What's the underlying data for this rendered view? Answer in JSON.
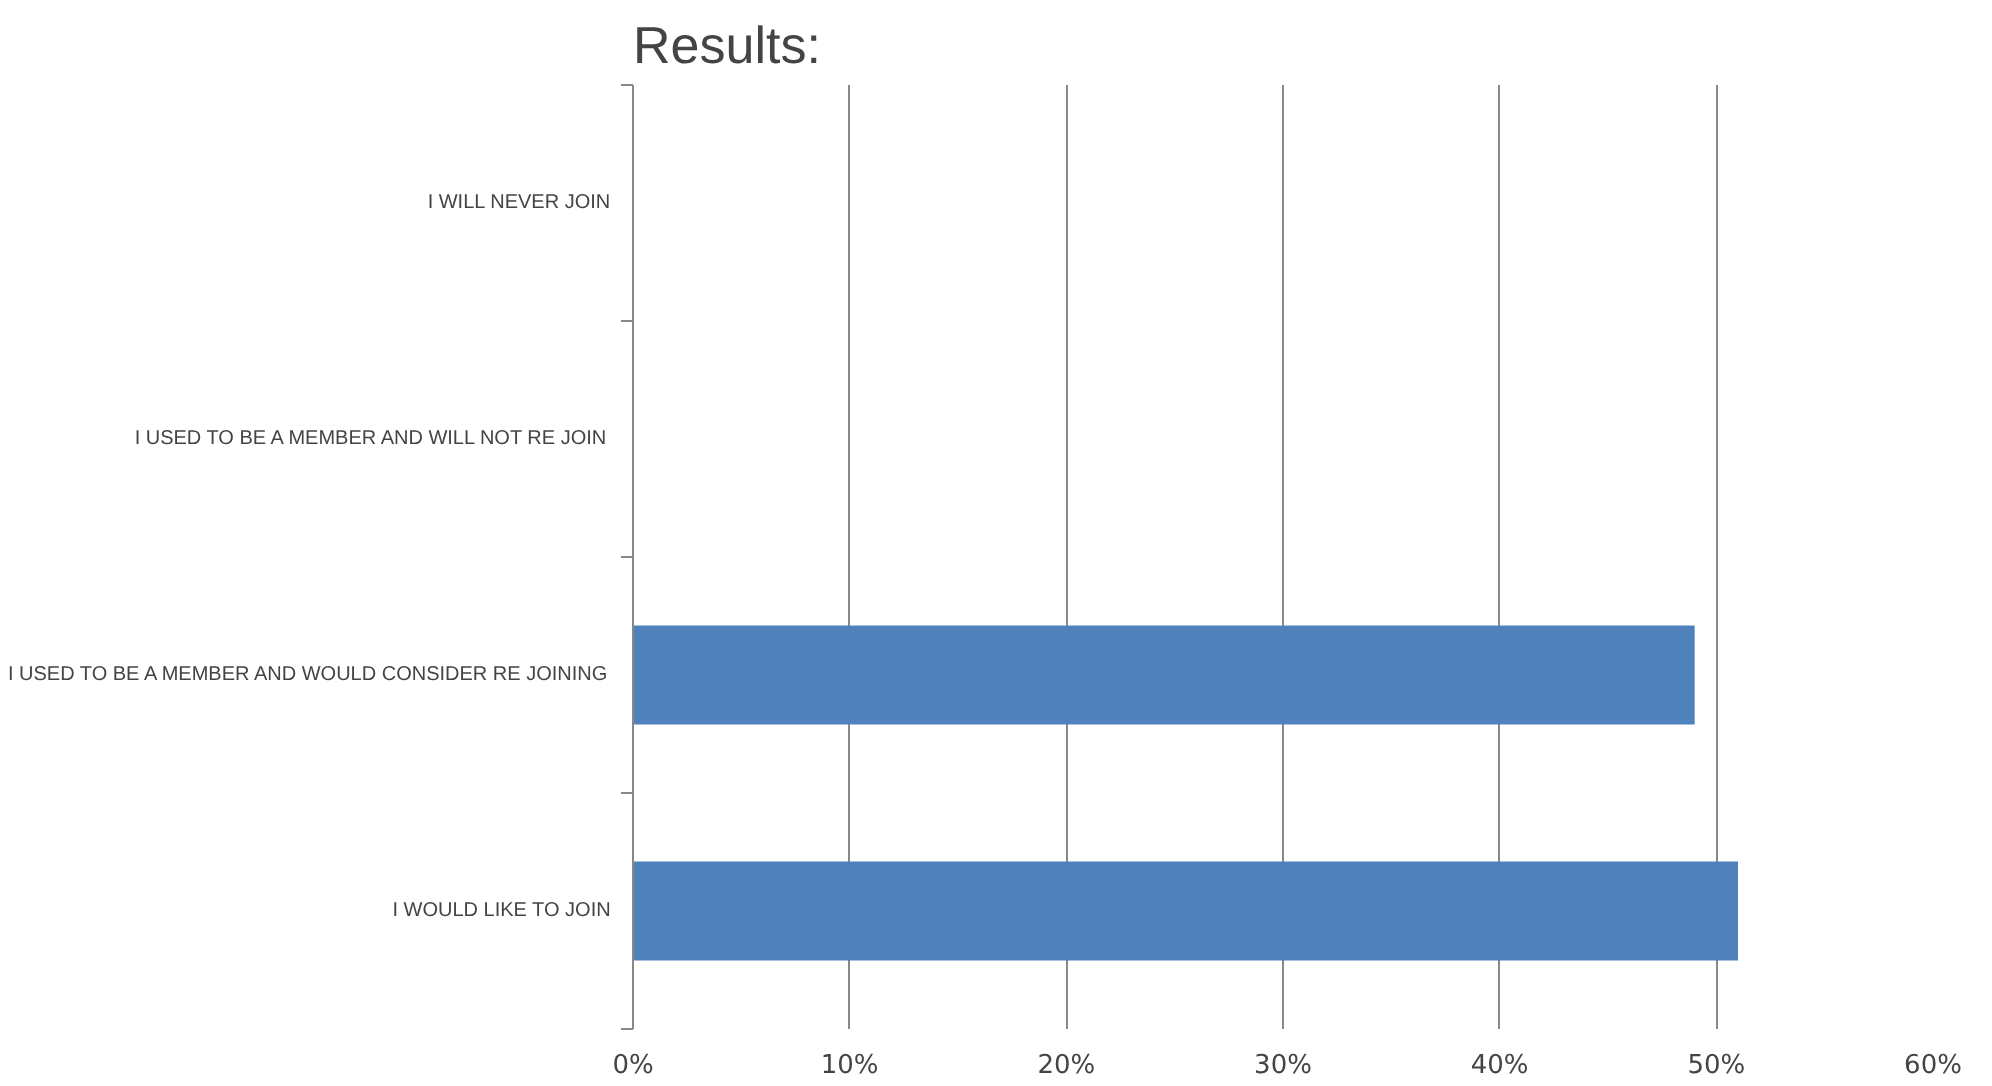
{
  "chart_data": {
    "type": "bar",
    "orientation": "horizontal",
    "title": "Results:",
    "categories": [
      "I WILL NEVER JOIN",
      "I USED TO BE A MEMBER AND WILL NOT RE JOIN",
      "I USED TO BE A MEMBER AND WOULD CONSIDER RE JOINING",
      "I WOULD LIKE TO JOIN"
    ],
    "values": [
      0,
      0,
      0.49,
      0.51
    ],
    "color": "#4f81bd",
    "xlim": [
      0,
      0.6
    ],
    "xticks": [
      {
        "value": 0,
        "label": "0%"
      },
      {
        "value": 0.1,
        "label": "10%"
      },
      {
        "value": 0.2,
        "label": "20%"
      },
      {
        "value": 0.3,
        "label": "30%"
      },
      {
        "value": 0.4,
        "label": "40%"
      },
      {
        "value": 0.5,
        "label": "50%"
      },
      {
        "value": 0.6,
        "label": "60%"
      }
    ],
    "grid": "x"
  }
}
